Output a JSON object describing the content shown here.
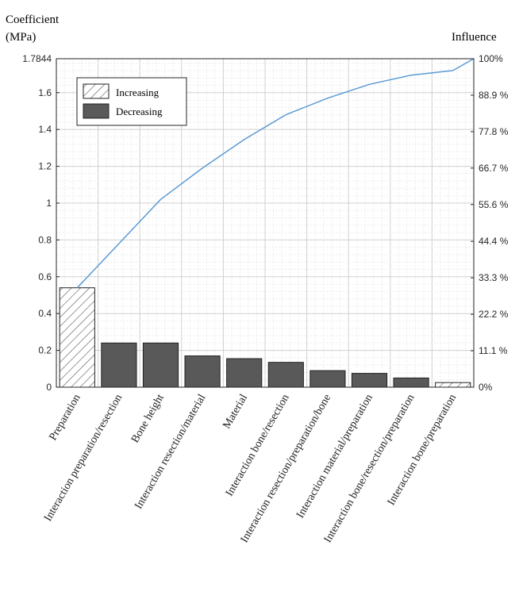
{
  "chart_data": {
    "type": "bar",
    "title": "",
    "ylabel_left": [
      "Coefficient",
      "(MPa)"
    ],
    "ylabel_right": "Influence",
    "ylim": [
      0,
      1.7844
    ],
    "left_ticks": [
      0,
      0.2,
      0.4,
      0.6,
      0.8,
      1,
      1.2,
      1.4,
      1.6,
      1.7844
    ],
    "left_tick_labels": [
      "0",
      "0.2",
      "0.4",
      "0.6",
      "0.8",
      "1",
      "1.2",
      "1.4",
      "1.6",
      "1.7844"
    ],
    "right_ticks": [
      0,
      11.1,
      22.2,
      33.3,
      44.4,
      55.6,
      66.7,
      77.8,
      88.9,
      100
    ],
    "right_tick_labels": [
      "0%",
      "11.1 %",
      "22.2 %",
      "33.3 %",
      "44.4 %",
      "55.6 %",
      "66.7 %",
      "77.8 %",
      "88.9 %",
      "100%"
    ],
    "categories": [
      "Preparation",
      "Interaction preparation/resection",
      "Bone height",
      "Interaction resection/material",
      "Material",
      "Interaction bone/resection",
      "Interaction resection/preparation/bone",
      "Interaction material/preparation",
      "Interaction bone/resection/preparation",
      "Interaction bone/preparation"
    ],
    "values": [
      0.54,
      0.24,
      0.24,
      0.17,
      0.155,
      0.135,
      0.09,
      0.075,
      0.05,
      0.025
    ],
    "effect": [
      "Increasing",
      "Decreasing",
      "Decreasing",
      "Decreasing",
      "Decreasing",
      "Decreasing",
      "Decreasing",
      "Decreasing",
      "Decreasing",
      "Increasing"
    ],
    "cumulative": [
      0.54,
      0.78,
      1.02,
      1.19,
      1.345,
      1.48,
      1.57,
      1.645,
      1.695,
      1.72,
      1.7844
    ],
    "legend": [
      "Increasing",
      "Decreasing"
    ],
    "legend_position": "top-left",
    "grid": true,
    "colors": {
      "bar": "#595959",
      "line": "#5b9bd5",
      "grid": "#d9d9d9"
    }
  }
}
